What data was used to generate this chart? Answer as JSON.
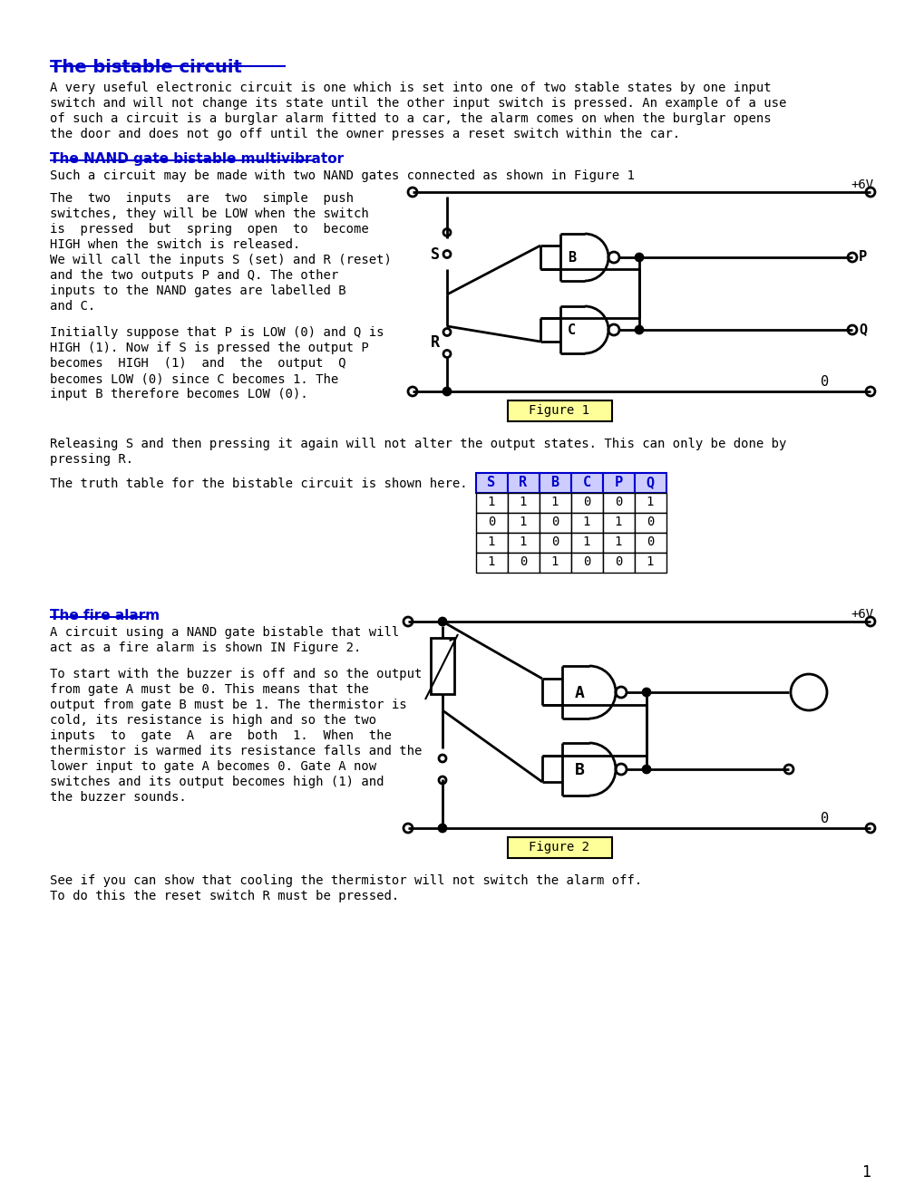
{
  "title": "The bistable circuit",
  "title_color": "#0000CC",
  "section1_title": "The NAND gate bistable multivibrator",
  "section1_color": "#0000CC",
  "section2_title": "The fire alarm",
  "section2_color": "#0000CC",
  "para1": [
    "A very useful electronic circuit is one which is set into one of two stable states by one input",
    "switch and will not change its state until the other input switch is pressed. An example of a use",
    "of such a circuit is a burglar alarm fitted to a car, the alarm comes on when the burglar opens",
    "the door and does not go off until the owner presses a reset switch within the car."
  ],
  "para2": "Such a circuit may be made with two NAND gates connected as shown in Figure 1",
  "para3": [
    "The  two  inputs  are  two  simple  push",
    "switches, they will be LOW when the switch",
    "is  pressed  but  spring  open  to  become",
    "HIGH when the switch is released.",
    "We will call the inputs S (set) and R (reset)",
    "and the two outputs P and Q. The other",
    "inputs to the NAND gates are labelled B",
    "and C."
  ],
  "para4": [
    "Initially suppose that P is LOW (0) and Q is",
    "HIGH (1). Now if S is pressed the output P",
    "becomes  HIGH  (1)  and  the  output  Q",
    "becomes LOW (0) since C becomes 1. The",
    "input B therefore becomes LOW (0)."
  ],
  "para5": [
    "Releasing S and then pressing it again will not alter the output states. This can only be done by",
    "pressing R."
  ],
  "para6": "The truth table for the bistable circuit is shown here.",
  "para7": [
    "A circuit using a NAND gate bistable that will",
    "act as a fire alarm is shown IN Figure 2."
  ],
  "para8": [
    "To start with the buzzer is off and so the output",
    "from gate A must be 0. This means that the",
    "output from gate B must be 1. The thermistor is",
    "cold, its resistance is high and so the two",
    "inputs  to  gate  A  are  both  1.  When  the",
    "thermistor is warmed its resistance falls and the",
    "lower input to gate A becomes 0. Gate A now",
    "switches and its output becomes high (1) and",
    "the buzzer sounds."
  ],
  "para9": [
    "See if you can show that cooling the thermistor will not switch the alarm off.",
    "To do this the reset switch R must be pressed."
  ],
  "truth_table_headers": [
    "S",
    "R",
    "B",
    "C",
    "P",
    "Q"
  ],
  "truth_table_data": [
    [
      1,
      1,
      1,
      0,
      0,
      1
    ],
    [
      0,
      1,
      0,
      1,
      1,
      0
    ],
    [
      1,
      1,
      0,
      1,
      1,
      0
    ],
    [
      1,
      0,
      1,
      0,
      0,
      1
    ]
  ],
  "figure1_caption": "Figure 1",
  "figure2_caption": "Figure 2",
  "page_number": "1"
}
